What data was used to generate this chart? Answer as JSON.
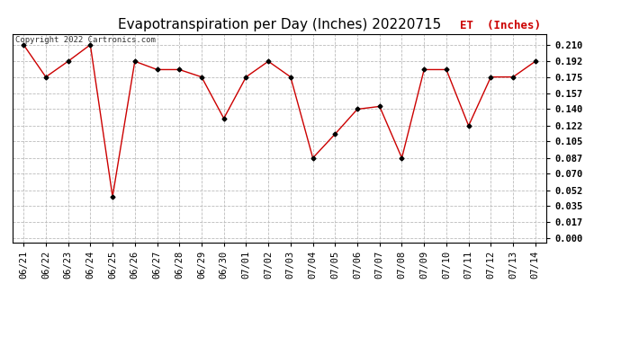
{
  "title": "Evapotranspiration per Day (Inches) 20220715",
  "legend_label": "ET  (Inches)",
  "copyright_text": "Copyright 2022 Cartronics.com",
  "x_labels": [
    "06/21",
    "06/22",
    "06/23",
    "06/24",
    "06/25",
    "06/26",
    "06/27",
    "06/28",
    "06/29",
    "06/30",
    "07/01",
    "07/02",
    "07/03",
    "07/04",
    "07/05",
    "07/06",
    "07/07",
    "07/08",
    "07/09",
    "07/10",
    "07/11",
    "07/12",
    "07/13",
    "07/14"
  ],
  "et_values": [
    0.21,
    0.175,
    0.192,
    0.21,
    0.045,
    0.192,
    0.183,
    0.183,
    0.175,
    0.13,
    0.175,
    0.192,
    0.175,
    0.087,
    0.113,
    0.14,
    0.143,
    0.087,
    0.183,
    0.183,
    0.122,
    0.175,
    0.175,
    0.192
  ],
  "y_ticks": [
    0.0,
    0.017,
    0.035,
    0.052,
    0.07,
    0.087,
    0.105,
    0.122,
    0.14,
    0.157,
    0.175,
    0.192,
    0.21
  ],
  "line_color": "#cc0000",
  "marker": "D",
  "marker_size": 2.5,
  "marker_color": "#000000",
  "background_color": "#ffffff",
  "grid_color": "#bbbbbb",
  "title_fontsize": 11,
  "tick_fontsize": 7.5,
  "legend_fontsize": 9,
  "copyright_fontsize": 6.5
}
